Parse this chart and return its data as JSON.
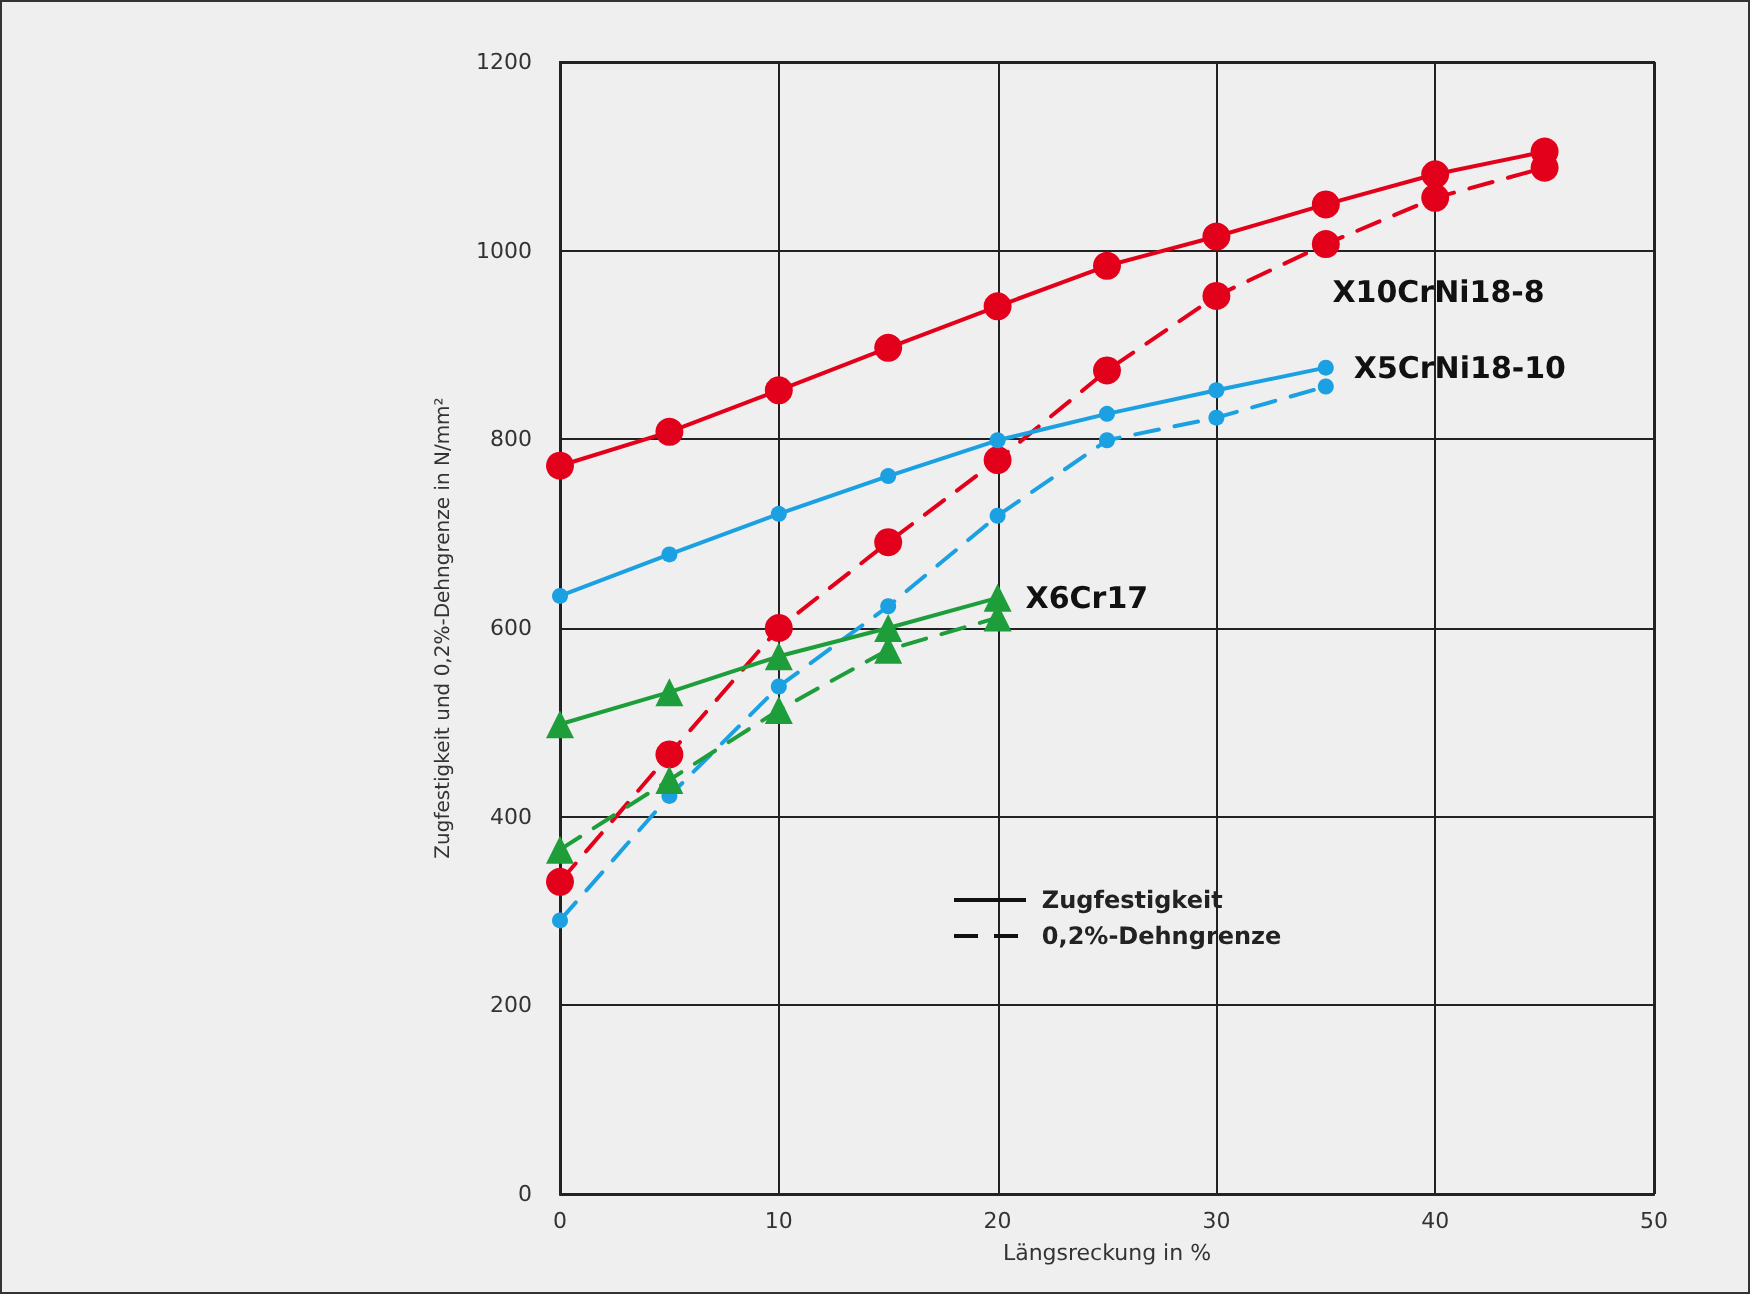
{
  "chart_data": {
    "type": "line",
    "xlabel": "Längsreckung in %",
    "ylabel": "Zugfestigkeit und 0,2%-Dehngrenze in N/mm²",
    "x": [
      0,
      5,
      10,
      15,
      20,
      25,
      30,
      35,
      40,
      45
    ],
    "series": [
      {
        "name": "X10CrNi18-8",
        "color": "#e2001a",
        "marker": "circle",
        "line_style": "solid",
        "values": [
          772,
          808,
          852,
          897,
          941,
          984,
          1015,
          1049,
          1081,
          1105
        ]
      },
      {
        "color": "#e2001a",
        "marker": "circle",
        "line_style": "dashed",
        "values": [
          331,
          466,
          600,
          691,
          778,
          873,
          952,
          1007,
          1056,
          1088
        ]
      },
      {
        "name": "X5CrNi18-10",
        "color": "#1ba1e2",
        "marker": "circle",
        "line_style": "solid",
        "values": [
          634,
          678,
          721,
          761,
          799,
          827,
          852,
          876,
          null,
          null
        ]
      },
      {
        "color": "#1ba1e2",
        "marker": "circle",
        "line_style": "dashed",
        "values": [
          290,
          422,
          538,
          623,
          719,
          799,
          823,
          856,
          null,
          null
        ]
      },
      {
        "name": "X6Cr17",
        "color": "#1e9e3a",
        "marker": "triangle",
        "line_style": "solid",
        "values": [
          498,
          532,
          570,
          600,
          632,
          null,
          null,
          null,
          null,
          null
        ]
      },
      {
        "color": "#1e9e3a",
        "marker": "triangle",
        "line_style": "dashed",
        "values": [
          365,
          439,
          513,
          577,
          611,
          null,
          null,
          null,
          null,
          null
        ]
      }
    ],
    "annotations": [
      "Zugfestigkeit",
      "0,2%-Dehngrenze"
    ],
    "xlim": [
      0,
      50
    ],
    "xticks": [
      0,
      10,
      20,
      30,
      40,
      50
    ],
    "ylim": [
      0,
      1200
    ],
    "yticks": [
      0,
      200,
      400,
      600,
      800,
      1000,
      1200
    ],
    "grid": true
  }
}
